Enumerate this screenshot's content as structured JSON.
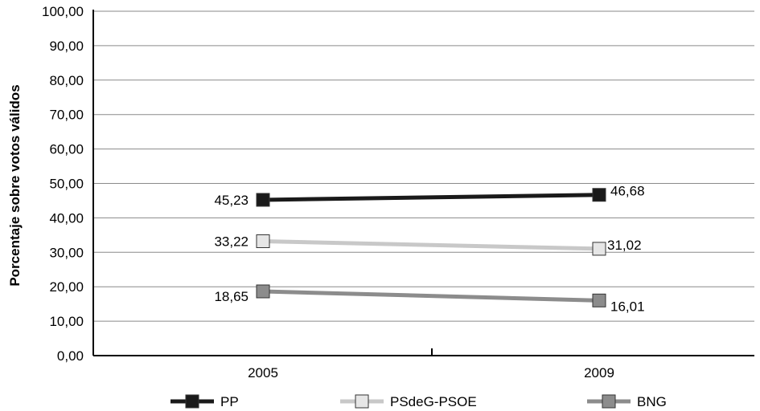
{
  "chart_data": {
    "type": "line",
    "categories": [
      "2005",
      "2009"
    ],
    "series": [
      {
        "name": "PP",
        "values": [
          45.23,
          46.68
        ],
        "labels": [
          "45,23",
          "46,68"
        ],
        "line_color": "#1a1a1a",
        "marker_color": "#1a1a1a"
      },
      {
        "name": "PSdeG-PSOE",
        "values": [
          33.22,
          31.02
        ],
        "labels": [
          "33,22",
          "31,02"
        ],
        "line_color": "#c8c8c8",
        "marker_color": "#e6e6e6"
      },
      {
        "name": "BNG",
        "values": [
          18.65,
          16.01
        ],
        "labels": [
          "18,65",
          "16,01"
        ],
        "line_color": "#8c8c8c",
        "marker_color": "#8c8c8c"
      }
    ],
    "ylabel": "Porcentaje sobre votos válidos",
    "xlabel": "",
    "ylim": [
      0,
      100
    ],
    "y_ticks": [
      "0,00",
      "10,00",
      "20,00",
      "30,00",
      "40,00",
      "50,00",
      "60,00",
      "70,00",
      "80,00",
      "90,00",
      "100,00"
    ],
    "grid": true,
    "legend_position": "bottom"
  }
}
